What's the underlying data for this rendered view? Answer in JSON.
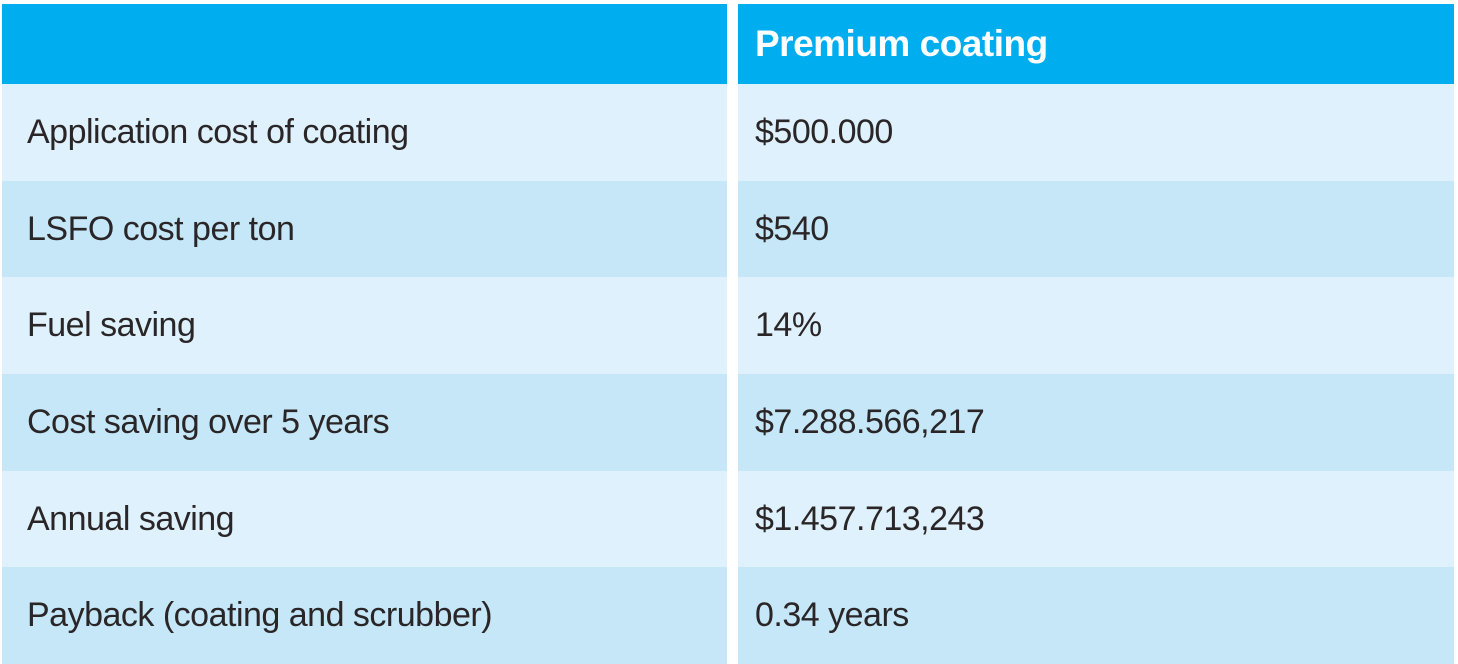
{
  "colors": {
    "header_bg": "#00AEEF",
    "row_light": "#DFF1FC",
    "row_dark": "#C5E7F8",
    "header_text": "#FFFFFF",
    "body_text": "#2A2627",
    "divider": "#FFFFFF"
  },
  "table": {
    "header": {
      "label": "",
      "value": "Premium coating"
    },
    "rows": [
      {
        "label": "Application cost of coating",
        "value": "$500.000"
      },
      {
        "label": "LSFO cost per ton",
        "value": "$540"
      },
      {
        "label": "Fuel saving",
        "value": "14%"
      },
      {
        "label": "Cost saving over 5 years",
        "value": "$7.288.566,217"
      },
      {
        "label": "Annual saving",
        "value": "$1.457.713,243"
      },
      {
        "label": "Payback (coating and scrubber)",
        "value": "0.34 years"
      }
    ]
  },
  "chart_data": {
    "type": "table",
    "title": "",
    "columns": [
      "",
      "Premium coating"
    ],
    "rows": [
      [
        "Application cost of coating",
        "$500.000"
      ],
      [
        "LSFO cost per ton",
        "$540"
      ],
      [
        "Fuel saving",
        "14%"
      ],
      [
        "Cost saving over 5 years",
        "$7.288.566,217"
      ],
      [
        "Annual saving",
        "$1.457.713,243"
      ],
      [
        "Payback (coating and scrubber)",
        "0.34 years"
      ]
    ]
  }
}
